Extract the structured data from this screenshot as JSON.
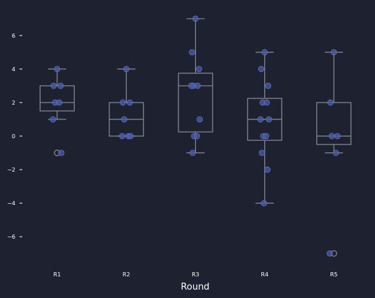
{
  "chart_data": {
    "type": "box",
    "xlabel": "Round",
    "ylabel": "",
    "categories": [
      "R1",
      "R2",
      "R3",
      "R4",
      "R5"
    ],
    "ylim": [
      -7.7,
      7.7
    ],
    "yticks": [
      -6,
      -4,
      -2,
      0,
      2,
      4,
      6
    ],
    "ytick_labels": [
      "−6",
      "−4",
      "−2",
      "0",
      "2",
      "4",
      "6"
    ],
    "grid": false,
    "boxes": [
      {
        "category": "R1",
        "q1": 1.5,
        "median": 2,
        "q3": 3,
        "whisker_low": 1,
        "whisker_high": 4,
        "outliers": [
          -1
        ]
      },
      {
        "category": "R2",
        "q1": 0,
        "median": 1,
        "q3": 2,
        "whisker_low": 0,
        "whisker_high": 4,
        "outliers": []
      },
      {
        "category": "R3",
        "q1": 0.25,
        "median": 3,
        "q3": 3.75,
        "whisker_low": -1,
        "whisker_high": 7,
        "outliers": []
      },
      {
        "category": "R4",
        "q1": -0.25,
        "median": 1,
        "q3": 2.25,
        "whisker_low": -4,
        "whisker_high": 5,
        "outliers": []
      },
      {
        "category": "R5",
        "q1": -0.5,
        "median": 0,
        "q3": 2,
        "whisker_low": -1,
        "whisker_high": 5,
        "outliers": [
          -7
        ]
      }
    ],
    "points": [
      {
        "category": "R1",
        "values": [
          4,
          3,
          3,
          2,
          2,
          1,
          -1
        ]
      },
      {
        "category": "R2",
        "values": [
          4,
          2,
          2,
          1,
          0,
          0,
          0
        ]
      },
      {
        "category": "R3",
        "values": [
          7,
          5,
          4,
          3,
          3,
          3,
          1,
          0,
          0,
          -1
        ]
      },
      {
        "category": "R4",
        "values": [
          5,
          4,
          3,
          2,
          2,
          1,
          1,
          0,
          0,
          -1,
          -2,
          -4
        ]
      },
      {
        "category": "R5",
        "values": [
          5,
          2,
          0,
          0,
          -1,
          -7
        ]
      }
    ],
    "colors": {
      "background": "#1e2230",
      "box_line": "#8a8d96",
      "point_fill": "#4a5aa8",
      "point_edge": "#6272c0",
      "text": "#ffffff"
    }
  }
}
